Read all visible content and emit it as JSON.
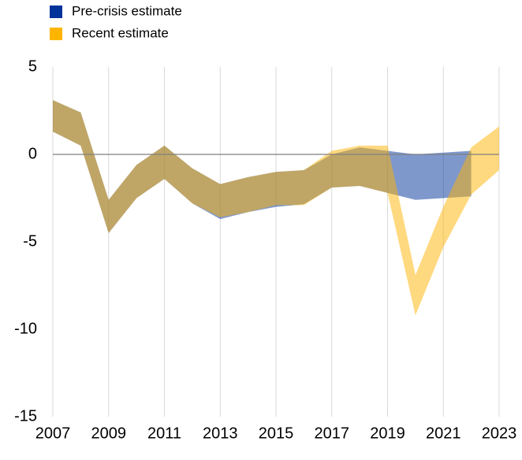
{
  "chart_data": {
    "type": "band",
    "x": [
      2007,
      2008,
      2009,
      2010,
      2011,
      2012,
      2013,
      2014,
      2015,
      2016,
      2017,
      2018,
      2019,
      2020,
      2021,
      2022,
      2023
    ],
    "series": [
      {
        "name": "Pre-crisis estimate",
        "color": "#003299",
        "upper": [
          3.1,
          2.4,
          -2.6,
          -0.6,
          0.5,
          -0.8,
          -1.7,
          -1.3,
          -1.0,
          -0.9,
          0.0,
          0.4,
          0.2,
          0.0,
          0.1,
          0.2,
          null
        ],
        "lower": [
          1.3,
          0.5,
          -4.5,
          -2.5,
          -1.4,
          -2.8,
          -3.7,
          -3.3,
          -3.0,
          -2.85,
          -1.9,
          -1.8,
          -2.2,
          -2.6,
          -2.5,
          -2.4,
          null
        ]
      },
      {
        "name": "Recent estimate",
        "color": "#ffb400",
        "upper": [
          3.1,
          2.4,
          -2.6,
          -0.6,
          0.5,
          -0.8,
          -1.7,
          -1.3,
          -1.0,
          -0.9,
          0.2,
          0.5,
          0.5,
          -6.9,
          -3.0,
          0.4,
          1.6
        ],
        "lower": [
          1.3,
          0.5,
          -4.5,
          -2.5,
          -1.4,
          -2.8,
          -3.6,
          -3.3,
          -2.9,
          -2.9,
          -1.9,
          -1.8,
          -2.2,
          -9.2,
          -5.3,
          -2.3,
          -0.9
        ]
      }
    ],
    "xlim": [
      2007,
      2023
    ],
    "xticks": [
      2007,
      2009,
      2011,
      2013,
      2015,
      2017,
      2019,
      2021,
      2023
    ],
    "ylim": [
      -15,
      5
    ],
    "yticks": [
      -15,
      -10,
      -5,
      0,
      5
    ],
    "grid": true,
    "legend": "top-left"
  }
}
